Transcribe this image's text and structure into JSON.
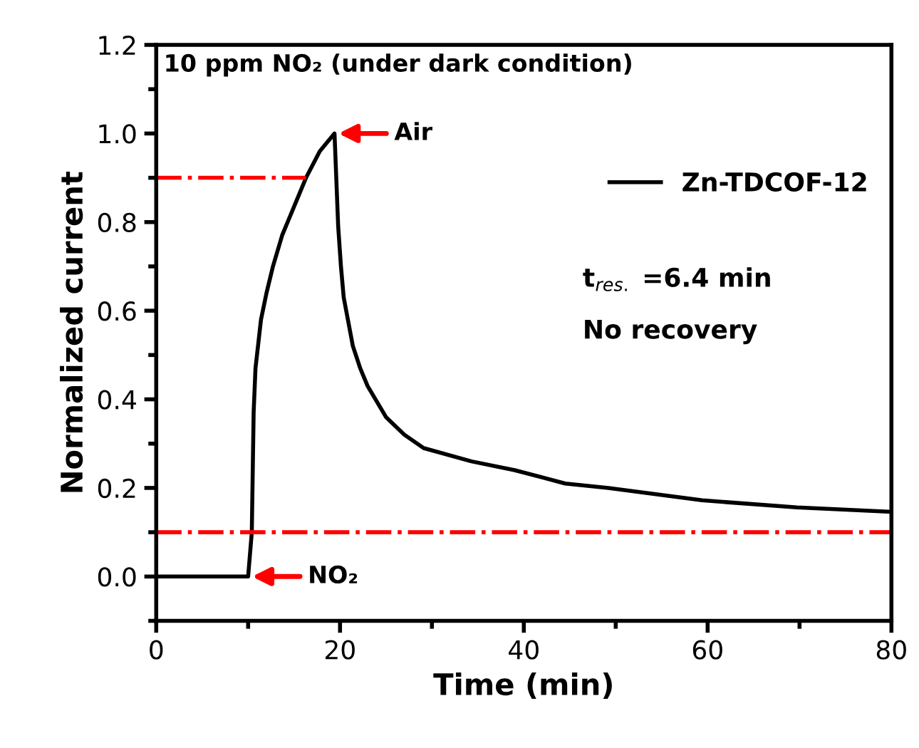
{
  "chart_data": {
    "type": "line",
    "title": "10 ppm NO₂ (under dark condition)",
    "xlabel": "Time (min)",
    "ylabel": "Normalized current",
    "xlim": [
      0,
      80
    ],
    "xticks": [
      0,
      20,
      40,
      60,
      80
    ],
    "ylim": [
      -0.1,
      1.2
    ],
    "yticks": [
      {
        "value": 0,
        "label": "0.0"
      },
      {
        "value": 0.2,
        "label": "0.2"
      },
      {
        "value": 0.4,
        "label": "0.4"
      },
      {
        "value": 0.6,
        "label": "0.6"
      },
      {
        "value": 0.8,
        "label": "0.8"
      },
      {
        "value": 1.0,
        "label": "1.0"
      },
      {
        "value": 1.2,
        "label": "1.2"
      }
    ],
    "series": [
      {
        "name": "Zn-TDCOF-12",
        "color": "#000000",
        "x": [
          0,
          10,
          10.4,
          10.6,
          10.8,
          11.4,
          12.0,
          12.7,
          13.7,
          14.5,
          15.3,
          16.3,
          17.8,
          18.6,
          19.4,
          19.8,
          20.1,
          20.4,
          21.4,
          22.2,
          23.0,
          25.0,
          27.0,
          29.1,
          34.3,
          39,
          44.5,
          49.2,
          59.4,
          69.7,
          80
        ],
        "values": [
          0,
          0,
          0.1,
          0.37,
          0.47,
          0.58,
          0.64,
          0.7,
          0.77,
          0.81,
          0.85,
          0.9,
          0.96,
          0.98,
          1.0,
          0.79,
          0.7,
          0.63,
          0.52,
          0.47,
          0.43,
          0.36,
          0.32,
          0.29,
          0.26,
          0.24,
          0.21,
          0.2,
          0.172,
          0.156,
          0.146
        ]
      },
      {
        "type": "line",
        "color": "#ff0000",
        "line_style": "dashdot",
        "x": [
          0,
          16.3
        ],
        "values": [
          0.9,
          0.9
        ]
      }
    ],
    "ref_lines": [
      {
        "axis": "y",
        "value": 0.1,
        "color": "#ff0000",
        "line_style": "dashdot"
      }
    ],
    "annotations": [
      {
        "text": "Air",
        "x": 19.4,
        "y": 1.0
      },
      {
        "text": "NO₂",
        "x": 10,
        "y": 0
      },
      "t$_{res.}$ =6.4 min",
      "No recovery"
    ],
    "legend": "top right",
    "grid": false,
    "marker": "none",
    "line_style": "solid"
  }
}
